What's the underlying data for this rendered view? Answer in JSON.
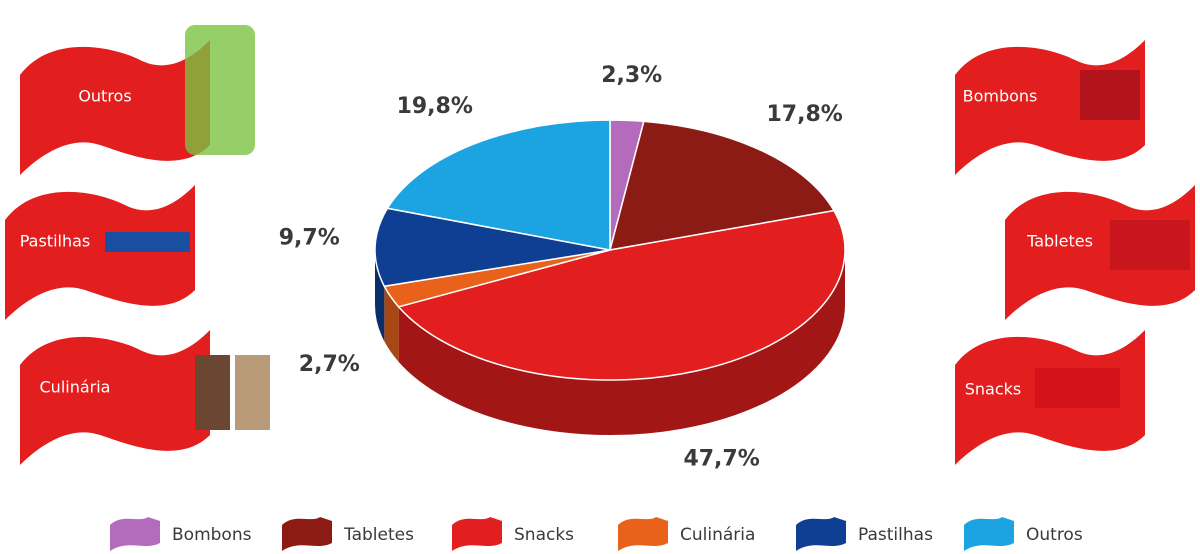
{
  "chart_data": {
    "type": "pie",
    "categories": [
      "Bombons",
      "Tabletes",
      "Snacks",
      "Culinária",
      "Pastilhas",
      "Outros"
    ],
    "values": [
      2.3,
      17.8,
      47.7,
      2.7,
      9.7,
      19.8
    ],
    "value_labels": [
      "2,3%",
      "17,8%",
      "47,7%",
      "2,7%",
      "9,7%",
      "19,8%"
    ],
    "colors": [
      "#b46bbb",
      "#8c1b15",
      "#e21e1e",
      "#e8621c",
      "#0f3f92",
      "#1ba3e2"
    ]
  }
}
